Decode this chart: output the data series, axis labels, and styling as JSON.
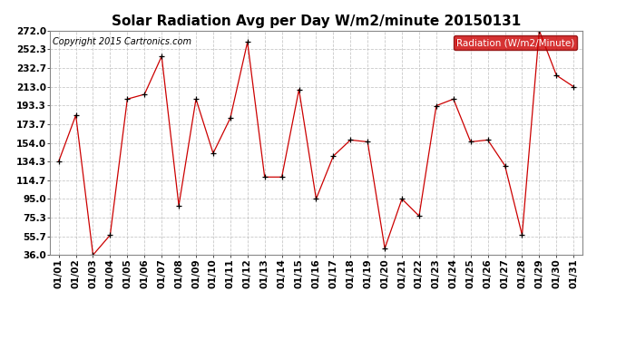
{
  "title": "Solar Radiation Avg per Day W/m2/minute 20150131",
  "copyright_text": "Copyright 2015 Cartronics.com",
  "legend_label": "Radiation (W/m2/Minute)",
  "legend_bg_color": "#cc0000",
  "legend_text_color": "#ffffff",
  "dates": [
    "01/01",
    "01/02",
    "01/03",
    "01/04",
    "01/05",
    "01/06",
    "01/07",
    "01/08",
    "01/09",
    "01/10",
    "01/11",
    "01/12",
    "01/13",
    "01/14",
    "01/15",
    "01/16",
    "01/17",
    "01/18",
    "01/19",
    "01/20",
    "01/21",
    "01/22",
    "01/23",
    "01/24",
    "01/25",
    "01/26",
    "01/27",
    "01/28",
    "01/29",
    "01/30",
    "01/31"
  ],
  "values": [
    134.3,
    183.0,
    36.0,
    57.0,
    200.0,
    205.0,
    245.0,
    88.0,
    200.0,
    143.0,
    180.0,
    260.0,
    118.0,
    118.0,
    210.0,
    95.0,
    140.0,
    157.0,
    155.0,
    43.0,
    95.0,
    77.0,
    193.0,
    200.0,
    155.0,
    157.0,
    130.0,
    57.0,
    272.0,
    225.0,
    213.0
  ],
  "y_ticks": [
    36.0,
    55.7,
    75.3,
    95.0,
    114.7,
    134.3,
    154.0,
    173.7,
    193.3,
    213.0,
    232.7,
    252.3,
    272.0
  ],
  "ylim": [
    36.0,
    272.0
  ],
  "line_color": "#cc0000",
  "marker": "+",
  "marker_color": "#000000",
  "grid_color": "#bbbbbb",
  "background_color": "#ffffff",
  "title_fontsize": 11,
  "tick_fontsize": 7.5,
  "copyright_fontsize": 7,
  "legend_fontsize": 7.5
}
